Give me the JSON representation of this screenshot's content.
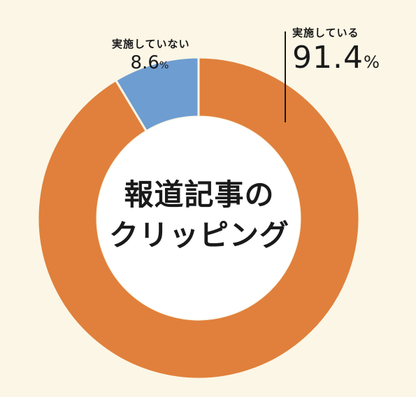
{
  "chart_data": {
    "type": "pie",
    "style": "donut",
    "center_title_lines": [
      "報道記事の",
      "クリッピング"
    ],
    "slices": [
      {
        "label": "実施している",
        "value": 91.4,
        "value_text": "91.4",
        "color": "#e0803c"
      },
      {
        "label": "実施していない",
        "value": 8.6,
        "value_text": "8.6",
        "color": "#6e9dd1"
      }
    ],
    "percent_sign": "%"
  }
}
